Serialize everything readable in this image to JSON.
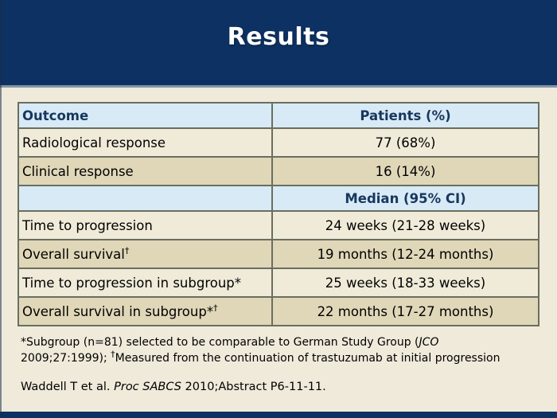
{
  "slide": {
    "title": "Results",
    "colors": {
      "band": "#0C3162",
      "body_bg": "#EFEADA",
      "divider": "#8494A8",
      "row_header_blue": "#D8EAF5",
      "row_cream": "#F0EBD9",
      "row_tan": "#DFD7B8",
      "table_border": "#6A6E60",
      "header_text": "#17375E",
      "title_text": "#FFFFFF"
    }
  },
  "table": {
    "rows": [
      {
        "label": "Outcome",
        "sup": "",
        "value": "Patients (%)"
      },
      {
        "label": "Radiological response",
        "sup": "",
        "value": "77 (68%)"
      },
      {
        "label": "Clinical response",
        "sup": "",
        "value": "16 (14%)"
      },
      {
        "label": "",
        "sup": "",
        "value": "Median (95% CI)"
      },
      {
        "label": "Time to progression",
        "sup": "",
        "value": "24 weeks (21-28 weeks)"
      },
      {
        "label": "Overall survival",
        "sup": "†",
        "value": "19 months (12-24 months)"
      },
      {
        "label": "Time to progression in subgroup*",
        "sup": "",
        "value": "25 weeks (18-33 weeks)"
      },
      {
        "label": "Overall survival in subgroup*",
        "sup": "†",
        "value": "22 months (17-27 months)"
      }
    ]
  },
  "footnote": {
    "line1_text": "*Subgroup (n=81) selected to be comparable to German Study Group (",
    "line1_italic": "JCO",
    "line2_text": "2009;27:1999); ",
    "line2_sup": "†",
    "line2_rest": "Measured from the continuation of trastuzumab at initial progression"
  },
  "citation": {
    "text1": "Waddell T et al. ",
    "italic": "Proc SABCS",
    "text2": " 2010;Abstract P6-11-11."
  }
}
